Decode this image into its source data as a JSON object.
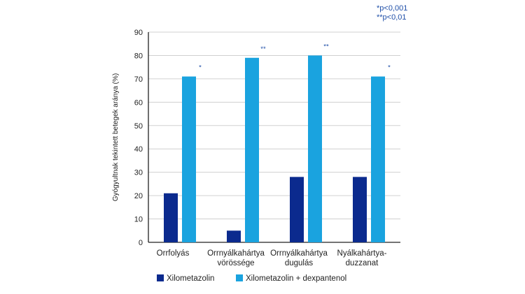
{
  "footnotes": [
    "*p<0,001",
    "**p<0,01"
  ],
  "colors": {
    "series_0": "#0b2a8e",
    "series_1": "#1aa3df",
    "significance": "#1f4fa8",
    "axis": "#222222",
    "grid": "#d0d0d0"
  },
  "chart_data": {
    "type": "bar",
    "ylabel": "Gyógyultnak tekintett betegek aránya (%)",
    "xlabel": "",
    "ylim": [
      0,
      90
    ],
    "yticks": [
      0,
      10,
      20,
      30,
      40,
      50,
      60,
      70,
      80,
      90
    ],
    "grid": "horizontal",
    "legend_position": "bottom-left",
    "categories": [
      [
        "Orrfolyás"
      ],
      [
        "Orrnyálkahártya",
        "vörössége"
      ],
      [
        "Orrnyálkahártya",
        "dugulás"
      ],
      [
        "Nyálkahártya-",
        "duzzanat"
      ]
    ],
    "series": [
      {
        "name": "Xilometazolin",
        "values": [
          21,
          5,
          28,
          28
        ]
      },
      {
        "name": "Xilometazolin + dexpantenol",
        "values": [
          71,
          79,
          80,
          71
        ]
      }
    ],
    "significance": [
      "*",
      "**",
      "**",
      "*"
    ]
  }
}
